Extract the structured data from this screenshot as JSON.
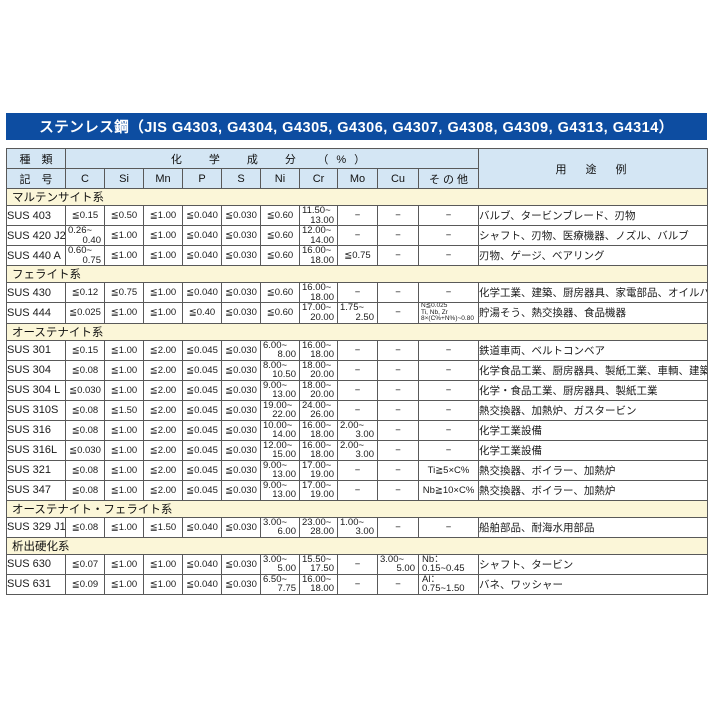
{
  "title": "ステンレス鋼（JIS G4303, G4304, G4305, G4306, G4307, G4308, G4309, G4313, G4314）",
  "colors": {
    "title_bar_bg": "#0d4da1",
    "title_text": "#ffffff",
    "header_bg": "#d4e6f4",
    "code_cell_bg": "#cdeaf8",
    "group_row_bg": "#fbf6d8",
    "grid_border": "#595959"
  },
  "header": {
    "kind_top": "種　類",
    "kind_bottom": "記　号",
    "chem": "化　学　成　分　（%）",
    "elements": [
      "C",
      "Si",
      "Mn",
      "P",
      "S",
      "Ni",
      "Cr",
      "Mo",
      "Cu",
      "そ の 他"
    ],
    "usage": "用　途　例"
  },
  "groups": [
    {
      "name": "マルテンサイト系",
      "rows": [
        {
          "code": "SUS 403",
          "chem": [
            "≦0.15",
            "≦0.50",
            "≦1.00",
            "≦0.040",
            "≦0.030",
            "≦0.60",
            {
              "type": "range",
              "lines": [
                "11.50~",
                "13.00"
              ]
            },
            "−",
            "−",
            "−"
          ],
          "usage": "バルブ、タービンブレード、刃物"
        },
        {
          "code": "SUS 420 J2",
          "chem": [
            {
              "type": "range",
              "lines": [
                "0.26~",
                "0.40"
              ]
            },
            "≦1.00",
            "≦1.00",
            "≦0.040",
            "≦0.030",
            "≦0.60",
            {
              "type": "range",
              "lines": [
                "12.00~",
                "14.00"
              ]
            },
            "−",
            "−",
            "−"
          ],
          "usage": "シャフト、刃物、医療機器、ノズル、バルブ"
        },
        {
          "code": "SUS 440 A",
          "chem": [
            {
              "type": "range",
              "lines": [
                "0.60~",
                "0.75"
              ]
            },
            "≦1.00",
            "≦1.00",
            "≦0.040",
            "≦0.030",
            "≦0.60",
            {
              "type": "range",
              "lines": [
                "16.00~",
                "18.00"
              ]
            },
            "≦0.75",
            "−",
            "−"
          ],
          "usage": "刃物、ゲージ、ベアリング"
        }
      ]
    },
    {
      "name": "フェライト系",
      "rows": [
        {
          "code": "SUS 430",
          "chem": [
            "≦0.12",
            "≦0.75",
            "≦1.00",
            "≦0.040",
            "≦0.030",
            "≦0.60",
            {
              "type": "range",
              "lines": [
                "16.00~",
                "18.00"
              ]
            },
            "−",
            "−",
            "−"
          ],
          "usage": "化学工業、建築、厨房器具、家電部品、オイルバーナー部品"
        },
        {
          "code": "SUS 444",
          "chem": [
            "≦0.025",
            "≦1.00",
            "≦1.00",
            "≦0.40",
            "≦0.030",
            "≦0.60",
            {
              "type": "range",
              "lines": [
                "17.00~",
                "20.00"
              ]
            },
            {
              "type": "range",
              "lines": [
                "1.75~",
                "2.50"
              ]
            },
            "−",
            {
              "type": "note",
              "lines": [
                "N≦0.025",
                "Ti, Nb, Zr",
                "8×(C%+N%)~0.80"
              ]
            }
          ],
          "usage": "貯湯そう、熱交換器、食品機器"
        }
      ]
    },
    {
      "name": "オーステナイト系",
      "rows": [
        {
          "code": "SUS 301",
          "chem": [
            "≦0.15",
            "≦1.00",
            "≦2.00",
            "≦0.045",
            "≦0.030",
            {
              "type": "range",
              "lines": [
                "6.00~",
                "8.00"
              ]
            },
            {
              "type": "range",
              "lines": [
                "16.00~",
                "18.00"
              ]
            },
            "−",
            "−",
            "−"
          ],
          "usage": "鉄道車両、ベルトコンベア"
        },
        {
          "code": "SUS 304",
          "chem": [
            "≦0.08",
            "≦1.00",
            "≦2.00",
            "≦0.045",
            "≦0.030",
            {
              "type": "range",
              "lines": [
                "8.00~",
                "10.50"
              ]
            },
            {
              "type": "range",
              "lines": [
                "18.00~",
                "20.00"
              ]
            },
            "−",
            "−",
            "−"
          ],
          "usage": "化学食品工業、厨房器具、製紙工業、車輌、建築"
        },
        {
          "code": "SUS 304 L",
          "chem": [
            "≦0.030",
            "≦1.00",
            "≦2.00",
            "≦0.045",
            "≦0.030",
            {
              "type": "range",
              "lines": [
                "9.00~",
                "13.00"
              ]
            },
            {
              "type": "range",
              "lines": [
                "18.00~",
                "20.00"
              ]
            },
            "−",
            "−",
            "−"
          ],
          "usage": "化学・食品工業、厨房器具、製紙工業"
        },
        {
          "code": "SUS 310S",
          "chem": [
            "≦0.08",
            "≦1.50",
            "≦2.00",
            "≦0.045",
            "≦0.030",
            {
              "type": "range",
              "lines": [
                "19.00~",
                "22.00"
              ]
            },
            {
              "type": "range",
              "lines": [
                "24.00~",
                "26.00"
              ]
            },
            "−",
            "−",
            "−"
          ],
          "usage": "熱交換器、加熱炉、ガスタービン"
        },
        {
          "code": "SUS 316",
          "chem": [
            "≦0.08",
            "≦1.00",
            "≦2.00",
            "≦0.045",
            "≦0.030",
            {
              "type": "range",
              "lines": [
                "10.00~",
                "14.00"
              ]
            },
            {
              "type": "range",
              "lines": [
                "16.00~",
                "18.00"
              ]
            },
            {
              "type": "range",
              "lines": [
                "2.00~",
                "3.00"
              ]
            },
            "−",
            "−"
          ],
          "usage": "化学工業設備"
        },
        {
          "code": "SUS 316L",
          "chem": [
            "≦0.030",
            "≦1.00",
            "≦2.00",
            "≦0.045",
            "≦0.030",
            {
              "type": "range",
              "lines": [
                "12.00~",
                "15.00"
              ]
            },
            {
              "type": "range",
              "lines": [
                "16.00~",
                "18.00"
              ]
            },
            {
              "type": "range",
              "lines": [
                "2.00~",
                "3.00"
              ]
            },
            "−",
            "−"
          ],
          "usage": "化学工業設備"
        },
        {
          "code": "SUS 321",
          "chem": [
            "≦0.08",
            "≦1.00",
            "≦2.00",
            "≦0.045",
            "≦0.030",
            {
              "type": "range",
              "lines": [
                "9.00~",
                "13.00"
              ]
            },
            {
              "type": "range",
              "lines": [
                "17.00~",
                "19.00"
              ]
            },
            "−",
            "−",
            "Ti≧5×C%"
          ],
          "usage": "熱交換器、ボイラー、加熱炉"
        },
        {
          "code": "SUS 347",
          "chem": [
            "≦0.08",
            "≦1.00",
            "≦2.00",
            "≦0.045",
            "≦0.030",
            {
              "type": "range",
              "lines": [
                "9.00~",
                "13.00"
              ]
            },
            {
              "type": "range",
              "lines": [
                "17.00~",
                "19.00"
              ]
            },
            "−",
            "−",
            "Nb≧10×C%"
          ],
          "usage": "熱交換器、ボイラー、加熱炉"
        }
      ]
    },
    {
      "name": "オーステナイト・フェライト系",
      "rows": [
        {
          "code": "SUS 329 J1",
          "chem": [
            "≦0.08",
            "≦1.00",
            "≦1.50",
            "≦0.040",
            "≦0.030",
            {
              "type": "range",
              "lines": [
                "3.00~",
                "6.00"
              ]
            },
            {
              "type": "range",
              "lines": [
                "23.00~",
                "28.00"
              ]
            },
            {
              "type": "range",
              "lines": [
                "1.00~",
                "3.00"
              ]
            },
            "−",
            "−"
          ],
          "usage": "船舶部品、耐海水用部品"
        }
      ]
    },
    {
      "name": "析出硬化系",
      "rows": [
        {
          "code": "SUS 630",
          "chem": [
            "≦0.07",
            "≦1.00",
            "≦1.00",
            "≦0.040",
            "≦0.030",
            {
              "type": "range",
              "lines": [
                "3.00~",
                "5.00"
              ]
            },
            {
              "type": "range",
              "lines": [
                "15.50~",
                "17.50"
              ]
            },
            "−",
            {
              "type": "range",
              "lines": [
                "3.00~",
                "5.00"
              ]
            },
            {
              "type": "left",
              "lines": [
                "Nb：",
                "0.15~0.45"
              ]
            }
          ],
          "usage": "シャフト、タービン"
        },
        {
          "code": "SUS 631",
          "chem": [
            "≦0.09",
            "≦1.00",
            "≦1.00",
            "≦0.040",
            "≦0.030",
            {
              "type": "range",
              "lines": [
                "6.50~",
                "7.75"
              ]
            },
            {
              "type": "range",
              "lines": [
                "16.00~",
                "18.00"
              ]
            },
            "−",
            "−",
            {
              "type": "left",
              "lines": [
                "Al：",
                "0.75~1.50"
              ]
            }
          ],
          "usage": "バネ、ワッシャー"
        }
      ]
    }
  ]
}
